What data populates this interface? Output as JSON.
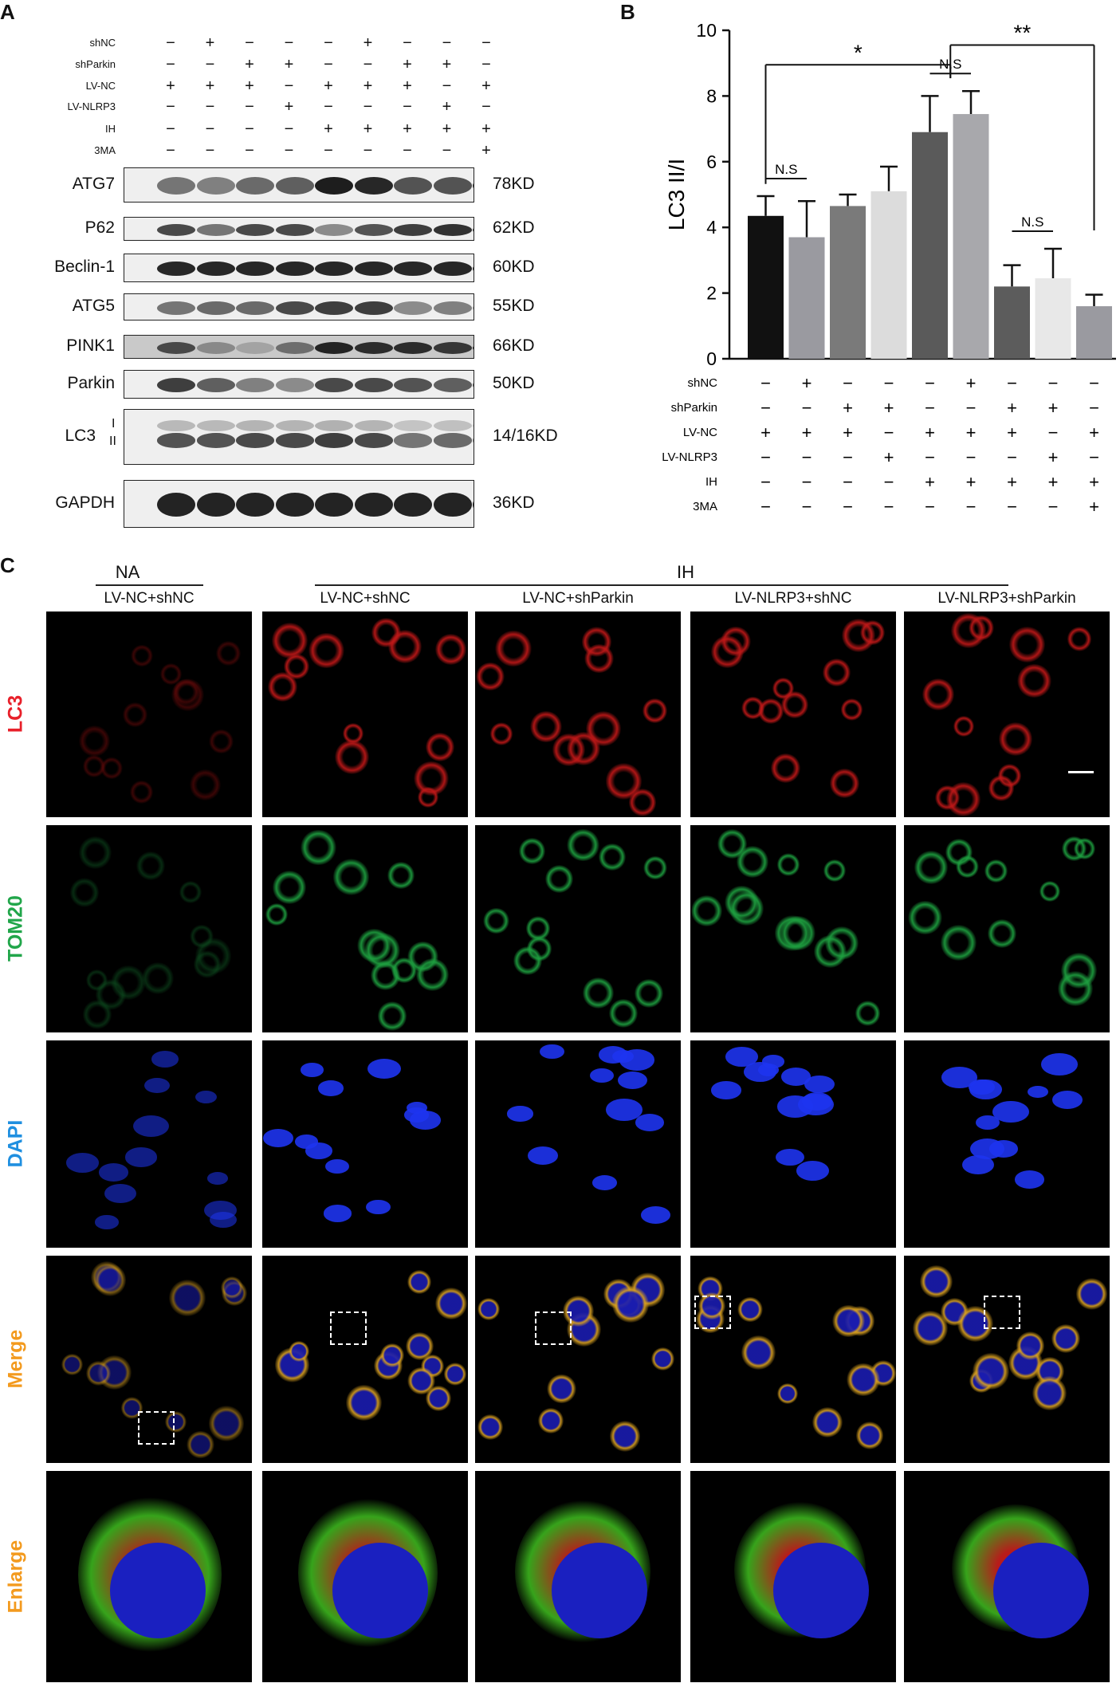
{
  "panels": {
    "a": "A",
    "b": "B",
    "c": "C"
  },
  "panelA": {
    "treatments": [
      "shNC",
      "shParkin",
      "LV-NC",
      "LV-NLRP3",
      "IH",
      "3MA"
    ],
    "matrix": [
      [
        "−",
        "+",
        "−",
        "−",
        "−",
        "+",
        "−",
        "−",
        "−"
      ],
      [
        "−",
        "−",
        "+",
        "+",
        "−",
        "−",
        "+",
        "+",
        "−"
      ],
      [
        "+",
        "+",
        "+",
        "−",
        "+",
        "+",
        "+",
        "−",
        "+"
      ],
      [
        "−",
        "−",
        "−",
        "+",
        "−",
        "−",
        "−",
        "+",
        "−"
      ],
      [
        "−",
        "−",
        "−",
        "−",
        "+",
        "+",
        "+",
        "+",
        "+"
      ],
      [
        "−",
        "−",
        "−",
        "−",
        "−",
        "−",
        "−",
        "−",
        "+"
      ]
    ],
    "blots": [
      {
        "name": "ATG7",
        "kd": "78KD",
        "intensity": [
          0.55,
          0.5,
          0.6,
          0.65,
          0.95,
          0.9,
          0.7,
          0.7,
          0.85
        ]
      },
      {
        "name": "P62",
        "kd": "62KD",
        "intensity": [
          0.75,
          0.55,
          0.75,
          0.75,
          0.45,
          0.7,
          0.8,
          0.85,
          0.8
        ]
      },
      {
        "name": "Beclin-1",
        "kd": "60KD",
        "intensity": [
          0.9,
          0.9,
          0.9,
          0.9,
          0.9,
          0.9,
          0.9,
          0.9,
          0.9
        ]
      },
      {
        "name": "ATG5",
        "kd": "55KD",
        "intensity": [
          0.55,
          0.6,
          0.6,
          0.75,
          0.8,
          0.8,
          0.45,
          0.5,
          0.35
        ]
      },
      {
        "name": "PINK1",
        "kd": "66KD",
        "intensity": [
          0.7,
          0.35,
          0.2,
          0.5,
          0.9,
          0.85,
          0.85,
          0.8,
          0.85
        ]
      },
      {
        "name": "Parkin",
        "kd": "50KD",
        "intensity": [
          0.8,
          0.65,
          0.5,
          0.45,
          0.75,
          0.75,
          0.7,
          0.65,
          0.7
        ]
      },
      {
        "name": "LC3",
        "kd": "14/16KD",
        "intensity": [
          0.7,
          0.7,
          0.75,
          0.75,
          0.8,
          0.75,
          0.55,
          0.6,
          0.45
        ],
        "sub": [
          "I",
          "II"
        ]
      },
      {
        "name": "GAPDH",
        "kd": "36KD",
        "intensity": [
          0.92,
          0.92,
          0.92,
          0.92,
          0.92,
          0.92,
          0.92,
          0.92,
          0.92
        ]
      }
    ]
  },
  "chart_data": {
    "type": "bar",
    "ylabel": "LC3 II/I",
    "ylim": [
      0,
      10
    ],
    "yticks": [
      0,
      2,
      4,
      6,
      8,
      10
    ],
    "values": [
      4.35,
      3.7,
      4.65,
      5.1,
      6.9,
      7.45,
      2.2,
      2.45,
      1.6
    ],
    "errors": [
      0.6,
      1.1,
      0.35,
      0.75,
      1.1,
      0.7,
      0.65,
      0.9,
      0.35
    ],
    "colors": [
      "#111111",
      "#9a9aa0",
      "#7a7a7a",
      "#dcdcdc",
      "#5a5a5a",
      "#a8a8ac",
      "#5c5c5c",
      "#e8e8e8",
      "#9a9aa0"
    ],
    "significance": [
      {
        "from": 0,
        "to": 1,
        "label": "N.S"
      },
      {
        "from": 4,
        "to": 5,
        "label": "N.S"
      },
      {
        "from": 6,
        "to": 7,
        "label": "N.S"
      },
      {
        "from": 0,
        "to": 4.5,
        "label": "*"
      },
      {
        "from": 4.5,
        "to": 8,
        "label": "**"
      }
    ],
    "treatments": [
      "shNC",
      "shParkin",
      "LV-NC",
      "LV-NLRP3",
      "IH",
      "3MA"
    ]
  },
  "panelC": {
    "group_na": "NA",
    "group_ih": "IH",
    "columns": [
      "LV-NC+shNC",
      "LV-NC+shNC",
      "LV-NC+shParkin",
      "LV-NLRP3+shNC",
      "LV-NLRP3+shParkin"
    ],
    "rows": [
      {
        "label": "LC3",
        "color": "#e8202a"
      },
      {
        "label": "TOM20",
        "color": "#21a64a"
      },
      {
        "label": "DAPI",
        "color": "#1f8fe0"
      },
      {
        "label": "Merge",
        "color": "#f39a1e"
      },
      {
        "label": "Enlarge",
        "color": "#f39a1e"
      }
    ]
  }
}
